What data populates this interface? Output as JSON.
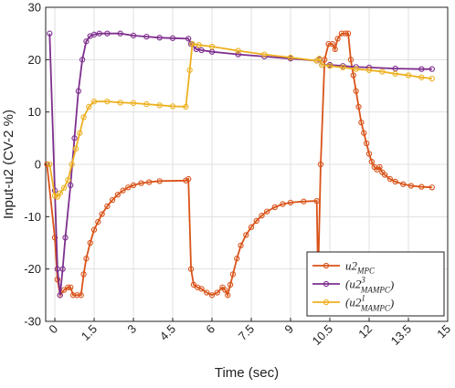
{
  "chart_data": {
    "type": "line",
    "xlabel": "Time (sec)",
    "ylabel": "Input-u2 (CV-2 %)",
    "xlim": [
      -0.35,
      15
    ],
    "ylim": [
      -30,
      30
    ],
    "xticks": [
      0,
      1.5,
      3,
      4.5,
      6,
      7.5,
      9,
      10.5,
      12,
      13.5,
      15
    ],
    "yticks": [
      -30,
      -20,
      -10,
      0,
      10,
      20,
      30
    ],
    "grid": true,
    "legend": "lower right",
    "series": [
      {
        "name": "u2",
        "sub": "MPC",
        "color": "#d95319",
        "x": [
          -0.3,
          0,
          0.1,
          0.2,
          0.35,
          0.5,
          0.6,
          0.7,
          0.85,
          1.0,
          1.1,
          1.2,
          1.35,
          1.5,
          1.65,
          1.8,
          2.0,
          2.2,
          2.4,
          2.6,
          2.8,
          3.0,
          3.3,
          3.6,
          4,
          5,
          5.1,
          5.2,
          5.3,
          5.45,
          5.6,
          5.8,
          6,
          6.2,
          6.4,
          6.5,
          6.6,
          6.7,
          6.8,
          6.95,
          7.1,
          7.3,
          7.5,
          7.7,
          7.9,
          8.1,
          8.4,
          8.7,
          9,
          9.5,
          10,
          10.05,
          10.15,
          10.3,
          10.45,
          10.6,
          10.7,
          10.8,
          10.95,
          11.1,
          11.2,
          11.3,
          11.4,
          11.5,
          11.6,
          11.7,
          11.8,
          11.9,
          12,
          12.1,
          12.2,
          12.3,
          12.4,
          12.5,
          12.6,
          12.8,
          13,
          13.3,
          13.6,
          14,
          14.4
        ],
        "values": [
          0,
          -14,
          -22,
          -25,
          -24,
          -23.5,
          -23.5,
          -25,
          -25,
          -25,
          -21,
          -18,
          -15,
          -12.5,
          -11,
          -9.5,
          -8,
          -6.8,
          -5.8,
          -5,
          -4.4,
          -4,
          -3.6,
          -3.4,
          -3.2,
          -3.1,
          -2.8,
          -20,
          -23,
          -23.5,
          -23.8,
          -24.5,
          -25,
          -24.5,
          -23.5,
          -24,
          -25,
          -23,
          -21,
          -18,
          -15.5,
          -13.5,
          -12,
          -10.8,
          -9.8,
          -9,
          -8.2,
          -7.6,
          -7.3,
          -7.1,
          -7,
          -22,
          0,
          20,
          23,
          23,
          22,
          24,
          25,
          25,
          25,
          20,
          17,
          14,
          11,
          8,
          6,
          4,
          2,
          0.5,
          -0.5,
          -1,
          -0.5,
          -1.5,
          -2,
          -2.8,
          -3.3,
          -3.8,
          -4.1,
          -4.3,
          -4.4
        ]
      },
      {
        "name": "(u2",
        "sup": "3",
        "sub": "MAMPC",
        "suffix": ")",
        "color": "#7e2f8e",
        "x": [
          -0.2,
          0,
          0.1,
          0.2,
          0.3,
          0.4,
          0.6,
          0.75,
          0.9,
          1.05,
          1.2,
          1.35,
          1.5,
          1.7,
          2,
          2.5,
          3,
          3.5,
          4,
          4.5,
          5.1,
          5.2,
          5.4,
          5.6,
          6,
          7,
          8,
          9,
          10,
          10.1,
          10.2,
          10.5,
          11,
          11.5,
          12,
          13,
          14,
          14.4
        ],
        "values": [
          25,
          -5,
          -20,
          -25,
          -20,
          -14,
          -4,
          5,
          14,
          20,
          23.5,
          24.5,
          24.8,
          25,
          25,
          25,
          24.6,
          24.4,
          24.2,
          24.1,
          24,
          23,
          22,
          21.8,
          21.5,
          21,
          20.6,
          20.2,
          19.8,
          20,
          19,
          19,
          18.8,
          18.6,
          18.5,
          18.3,
          18.2,
          18.2
        ]
      },
      {
        "name": "(u2",
        "sup": "1",
        "sub": "MAMPC",
        "suffix": ")",
        "color": "#edb120",
        "x": [
          -0.2,
          0,
          0.1,
          0.2,
          0.35,
          0.5,
          0.65,
          0.8,
          0.95,
          1.1,
          1.3,
          1.5,
          2,
          2.5,
          3,
          3.5,
          4,
          4.5,
          5,
          5.15,
          5.25,
          5.5,
          6,
          7,
          8,
          9,
          10,
          10.1,
          10.2,
          10.5,
          11,
          11.5,
          12,
          12.5,
          13,
          13.5,
          14,
          14.4
        ],
        "values": [
          0,
          -6,
          -6.2,
          -5.5,
          -4.5,
          -3,
          0,
          3,
          6,
          9,
          11,
          12,
          12,
          11.8,
          11.7,
          11.5,
          11.3,
          11.1,
          11,
          18,
          23,
          22.8,
          22.5,
          21.7,
          21,
          20.4,
          19.8,
          20.2,
          19,
          18.8,
          18.5,
          18.2,
          18,
          17.7,
          17.3,
          17,
          16.6,
          16.4
        ]
      }
    ]
  }
}
